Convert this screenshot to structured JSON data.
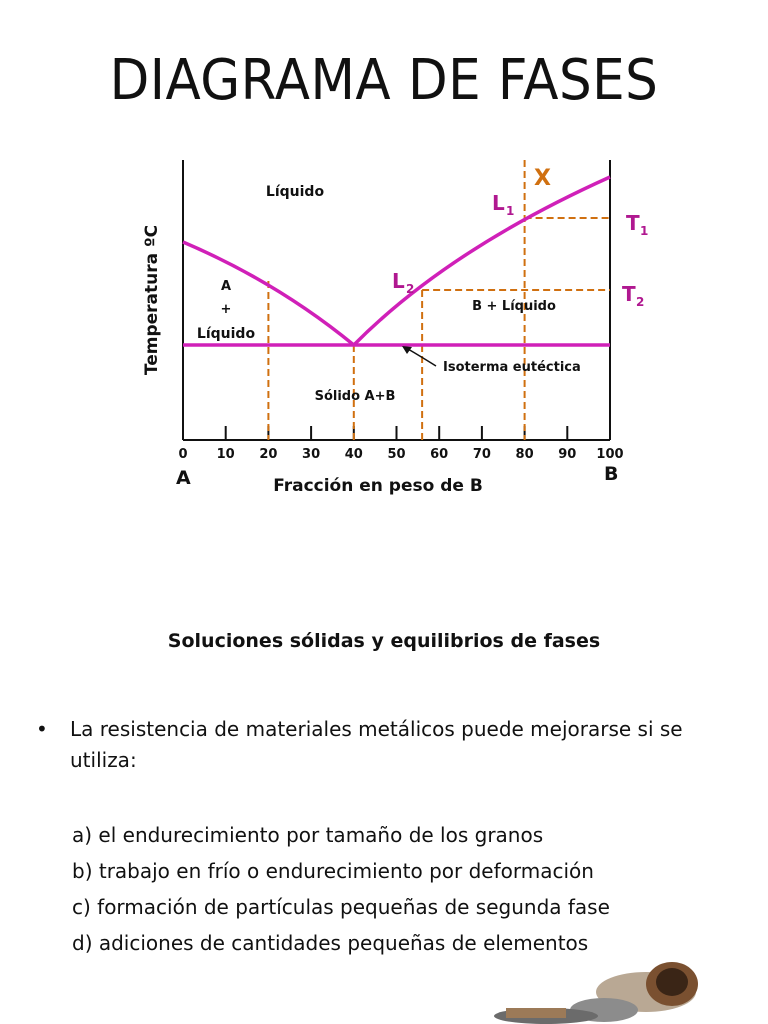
{
  "title": "DIAGRAMA DE FASES",
  "diagram": {
    "ylabel": "Temperatura ºC",
    "xlabel": "Fracción en peso de B",
    "x_ticks": [
      "0",
      "10",
      "20",
      "30",
      "40",
      "50",
      "60",
      "70",
      "80",
      "90",
      "100"
    ],
    "end_left": "A",
    "end_right": "B",
    "region_liquid": "Líquido",
    "region_a_liquid": [
      "A",
      "+",
      "Líquido"
    ],
    "region_b_liquid": "B + Líquido",
    "region_solid": "Sólido A+B",
    "isotherm_label": "Isoterma eutéctica",
    "label_x": "X",
    "label_l1": "L",
    "label_l1_sub": "1",
    "label_l2": "L",
    "label_l2_sub": "2",
    "label_t1": "T",
    "label_t1_sub": "1",
    "label_t2": "T",
    "label_t2_sub": "2",
    "colors": {
      "curve": "#d020b8",
      "dashed": "#d07010",
      "label": "#b01890",
      "axis": "#111111"
    }
  },
  "subtitle": "Soluciones sólidas y equilibrios de fases",
  "bullet": {
    "mark": "•",
    "text": "La resistencia de materiales metálicos puede mejorarse si se utiliza:"
  },
  "items": [
    "a) el endurecimiento por tamaño de los granos",
    "b) trabajo en frío o endurecimiento por deformación",
    "c) formación de partículas pequeñas de segunda fase",
    "d) adiciones de cantidades pequeñas de elementos"
  ]
}
